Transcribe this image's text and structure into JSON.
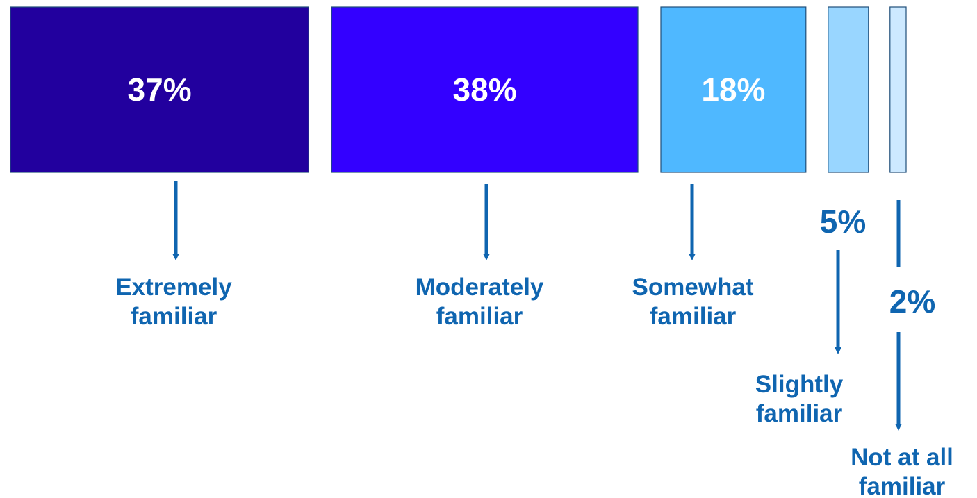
{
  "chart_data": {
    "type": "bar",
    "categories": [
      "Extremely familiar",
      "Moderately familiar",
      "Somewhat familiar",
      "Slightly familiar",
      "Not at all familiar"
    ],
    "category_lines": [
      [
        "Extremely",
        "familiar"
      ],
      [
        "Moderately",
        "familiar"
      ],
      [
        "Somewhat",
        "familiar"
      ],
      [
        "Slightly",
        "familiar"
      ],
      [
        "Not at all",
        "familiar"
      ]
    ],
    "values": [
      37,
      38,
      18,
      5,
      2
    ],
    "value_labels": [
      "37%",
      "38%",
      "18%",
      "5%",
      "2%"
    ],
    "unit": "%",
    "colors": [
      "#22009E",
      "#3300FF",
      "#4FB8FF",
      "#99D6FF",
      "#CDE9FF"
    ],
    "label_color": "#0F65B0",
    "inner_label_color": "#FFFFFF",
    "title": "",
    "xlabel": "",
    "ylabel": "",
    "grid": false,
    "legend": "none"
  }
}
